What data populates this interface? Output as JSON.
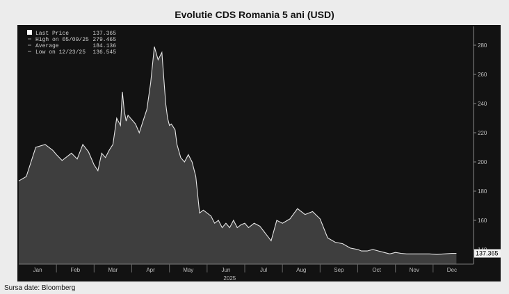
{
  "chart_data": {
    "type": "area",
    "title": "Evolutie CDS Romania 5 ani (USD)",
    "source": "Sursa date: Bloomberg",
    "year_label": "2025",
    "xlabel": "",
    "ylabel": "",
    "ylim": [
      130,
      290
    ],
    "y_ticks": [
      140,
      160,
      180,
      200,
      220,
      240,
      260,
      280
    ],
    "x_ticks": [
      "Jan",
      "Feb",
      "Mar",
      "Apr",
      "May",
      "Jun",
      "Jul",
      "Aug",
      "Sep",
      "Oct",
      "Nov",
      "Dec"
    ],
    "last_value_label": "137.365",
    "grid": false,
    "legend_position": "top-left",
    "legend": [
      {
        "label": "Last Price",
        "value": "137.365"
      },
      {
        "label": "High on 05/09/25",
        "value": "279.465"
      },
      {
        "label": "Average",
        "value": "184.136"
      },
      {
        "label": "Low on 12/23/25",
        "value": "136.545"
      }
    ],
    "series": [
      {
        "x": [
          0,
          0.2,
          0.45,
          0.7,
          0.9,
          1.0,
          1.15,
          1.3,
          1.4,
          1.55,
          1.7,
          1.85,
          2.0,
          2.1,
          2.2,
          2.3,
          2.4,
          2.5,
          2.6,
          2.7,
          2.75,
          2.8,
          2.85,
          2.9,
          3.0,
          3.1,
          3.2,
          3.3,
          3.4,
          3.5,
          3.6,
          3.7,
          3.8,
          3.9,
          3.95,
          4.0,
          4.05,
          4.1,
          4.15,
          4.2,
          4.3,
          4.4,
          4.5,
          4.6,
          4.7,
          4.8,
          4.9,
          5.0,
          5.1,
          5.2,
          5.3,
          5.4,
          5.5,
          5.6,
          5.7,
          5.8,
          5.9,
          6.0,
          6.1,
          6.25,
          6.4,
          6.55,
          6.7,
          6.85,
          7.0,
          7.2,
          7.4,
          7.6,
          7.8,
          8.0,
          8.2,
          8.4,
          8.6,
          8.8,
          9.0,
          9.1,
          9.25,
          9.4,
          9.55,
          9.7,
          9.85,
          10.0,
          10.15,
          10.3,
          10.5,
          10.7,
          10.9,
          11.1,
          11.3,
          11.5,
          11.62
        ],
        "values": [
          187,
          190,
          210,
          212,
          208,
          205,
          201,
          204,
          206,
          202,
          212,
          207,
          198,
          194,
          206,
          203,
          208,
          212,
          230,
          225,
          248,
          235,
          228,
          232,
          229,
          226,
          220,
          228,
          236,
          254,
          279,
          270,
          275,
          240,
          230,
          225,
          226,
          224,
          222,
          212,
          203,
          200,
          205,
          200,
          190,
          165,
          167,
          165,
          163,
          158,
          160,
          155,
          158,
          155,
          160,
          155,
          157,
          158,
          155,
          158,
          156,
          151,
          146,
          160,
          158,
          161,
          168,
          164,
          166,
          161,
          148,
          145,
          144,
          141,
          140,
          139,
          139,
          140,
          139,
          138,
          137,
          138,
          137.4,
          137,
          137,
          137,
          137,
          136.6,
          137,
          137.4,
          137.365
        ]
      }
    ]
  }
}
